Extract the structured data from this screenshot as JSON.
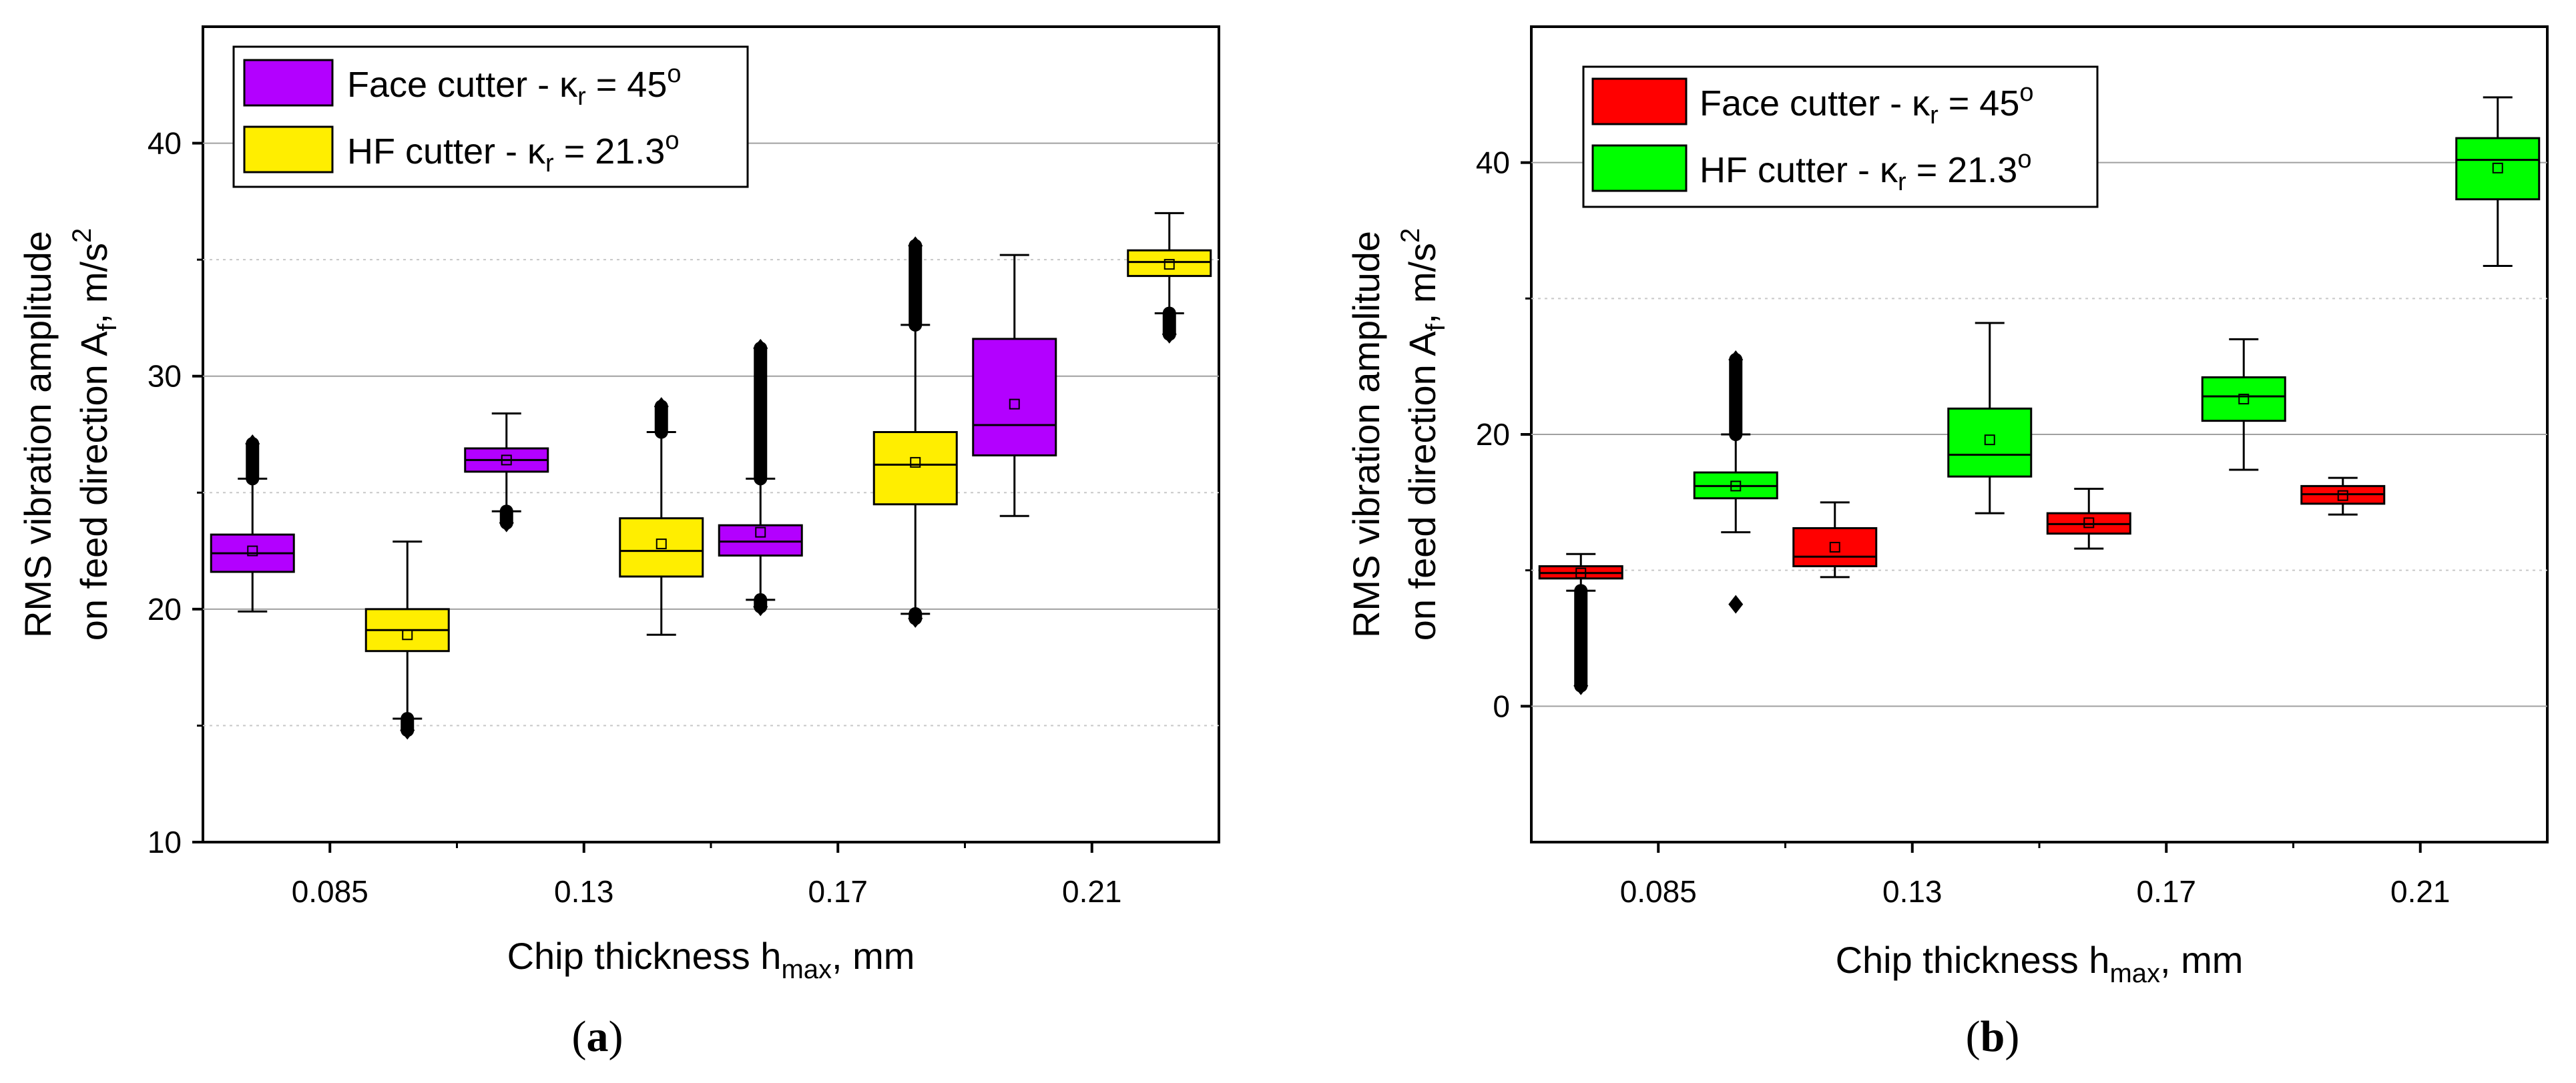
{
  "colors": {
    "a_face": "#b300ff",
    "a_hf": "#ffee00",
    "b_face": "#ff0000",
    "b_hf": "#00ff00"
  },
  "chart_data": [
    {
      "type": "box",
      "caption_id": "a",
      "xlabel": {
        "pre": "Chip thickness h",
        "sub": "max",
        "post": ", mm"
      },
      "ylabel": {
        "line1": "RMS vibration amplitude",
        "line2_pre": "on feed direction A",
        "line2_sub": "f",
        "line2_mid": ", m/s",
        "line2_sup": "2"
      },
      "ylim": [
        10,
        45
      ],
      "yticks": [
        10,
        20,
        30,
        40
      ],
      "ygrid_major": [
        20,
        30,
        40
      ],
      "ygrid_minor": [
        15,
        25,
        35
      ],
      "categories": [
        "0.085",
        "0.13",
        "0.17",
        "0.21"
      ],
      "legend": [
        {
          "pre": "Face cutter - κ",
          "sub": "r",
          "post": " = 45",
          "sup": "o"
        },
        {
          "pre": "HF cutter - κ",
          "sub": "r",
          "post": " = 21.3",
          "sup": "o"
        }
      ],
      "series": [
        {
          "name": "Face cutter - κr = 45o",
          "boxes": [
            {
              "q1": 21.6,
              "median": 22.4,
              "q3": 23.2,
              "mean": 22.5,
              "wlow": 19.9,
              "whigh": 25.6,
              "outliers_high": [
                25.6,
                27.1
              ],
              "outliers_low": []
            },
            {
              "q1": 25.9,
              "median": 26.4,
              "q3": 26.9,
              "mean": 26.4,
              "wlow": 24.2,
              "whigh": 28.4,
              "outliers_high": [],
              "outliers_low": [
                23.7,
                24.2
              ]
            },
            {
              "q1": 22.3,
              "median": 22.9,
              "q3": 23.6,
              "mean": 23.3,
              "wlow": 20.4,
              "whigh": 25.6,
              "outliers_high": [
                25.6,
                31.2
              ],
              "outliers_low": [
                20.1,
                20.4
              ]
            },
            {
              "q1": 26.6,
              "median": 27.9,
              "q3": 31.6,
              "mean": 28.8,
              "wlow": 24.0,
              "whigh": 35.2,
              "outliers_high": [],
              "outliers_low": []
            }
          ]
        },
        {
          "name": "HF cutter - κr = 21.3o",
          "boxes": [
            {
              "q1": 18.2,
              "median": 19.1,
              "q3": 20.0,
              "mean": 18.9,
              "wlow": 15.3,
              "whigh": 22.9,
              "outliers_high": [],
              "outliers_low": [
                14.8,
                15.3
              ]
            },
            {
              "q1": 21.4,
              "median": 22.5,
              "q3": 23.9,
              "mean": 22.8,
              "wlow": 18.9,
              "whigh": 27.6,
              "outliers_high": [
                27.6,
                28.7
              ],
              "outliers_low": []
            },
            {
              "q1": 24.5,
              "median": 26.2,
              "q3": 27.6,
              "mean": 26.3,
              "wlow": 19.8,
              "whigh": 32.2,
              "outliers_high": [
                32.2,
                35.6
              ],
              "outliers_low": [
                19.6,
                19.8
              ]
            },
            {
              "q1": 34.3,
              "median": 34.9,
              "q3": 35.4,
              "mean": 34.8,
              "wlow": 32.7,
              "whigh": 37.0,
              "outliers_high": [],
              "outliers_low": [
                31.8,
                32.7
              ]
            }
          ]
        }
      ]
    },
    {
      "type": "box",
      "caption_id": "b",
      "xlabel": {
        "pre": "Chip thickness h",
        "sub": "max",
        "post": ", mm"
      },
      "ylabel": {
        "line1": "RMS vibration amplitude",
        "line2_pre": "on feed direction A",
        "line2_sub": "f",
        "line2_mid": ", m/s",
        "line2_sup": "2"
      },
      "ylim": [
        -10,
        50
      ],
      "yticks": [
        0,
        20,
        40
      ],
      "ygrid_major": [
        0,
        20,
        40
      ],
      "ygrid_minor": [
        10,
        30
      ],
      "categories": [
        "0.085",
        "0.13",
        "0.17",
        "0.21"
      ],
      "legend": [
        {
          "pre": "Face cutter - κ",
          "sub": "r",
          "post": " = 45",
          "sup": "o"
        },
        {
          "pre": "HF cutter - κ",
          "sub": "r",
          "post": " = 21.3",
          "sup": "o"
        }
      ],
      "series": [
        {
          "name": "Face cutter - κr = 45o",
          "boxes": [
            {
              "q1": 9.4,
              "median": 9.8,
              "q3": 10.3,
              "mean": 9.8,
              "wlow": 8.5,
              "whigh": 11.2,
              "outliers_high": [],
              "outliers_low": [
                1.5,
                8.5
              ]
            },
            {
              "q1": 10.3,
              "median": 11.0,
              "q3": 13.1,
              "mean": 11.7,
              "wlow": 9.5,
              "whigh": 15.0,
              "outliers_high": [],
              "outliers_low": []
            },
            {
              "q1": 12.7,
              "median": 13.4,
              "q3": 14.2,
              "mean": 13.5,
              "wlow": 11.6,
              "whigh": 16.0,
              "outliers_high": [],
              "outliers_low": []
            },
            {
              "q1": 14.9,
              "median": 15.6,
              "q3": 16.2,
              "mean": 15.5,
              "wlow": 14.1,
              "whigh": 16.8,
              "outliers_high": [],
              "outliers_low": []
            }
          ]
        },
        {
          "name": "HF cutter - κr = 21.3o",
          "boxes": [
            {
              "q1": 15.3,
              "median": 16.2,
              "q3": 17.2,
              "mean": 16.2,
              "wlow": 12.8,
              "whigh": 20.0,
              "outliers_high": [
                20.0,
                25.5
              ],
              "outliers_low": [
                7.5
              ]
            },
            {
              "q1": 16.9,
              "median": 18.5,
              "q3": 21.9,
              "mean": 19.6,
              "wlow": 14.2,
              "whigh": 28.2,
              "outliers_high": [],
              "outliers_low": []
            },
            {
              "q1": 21.0,
              "median": 22.8,
              "q3": 24.2,
              "mean": 22.6,
              "wlow": 17.4,
              "whigh": 27.0,
              "outliers_high": [],
              "outliers_low": []
            },
            {
              "q1": 37.3,
              "median": 40.2,
              "q3": 41.8,
              "mean": 39.6,
              "wlow": 32.4,
              "whigh": 44.8,
              "outliers_high": [],
              "outliers_low": []
            }
          ]
        }
      ]
    }
  ]
}
